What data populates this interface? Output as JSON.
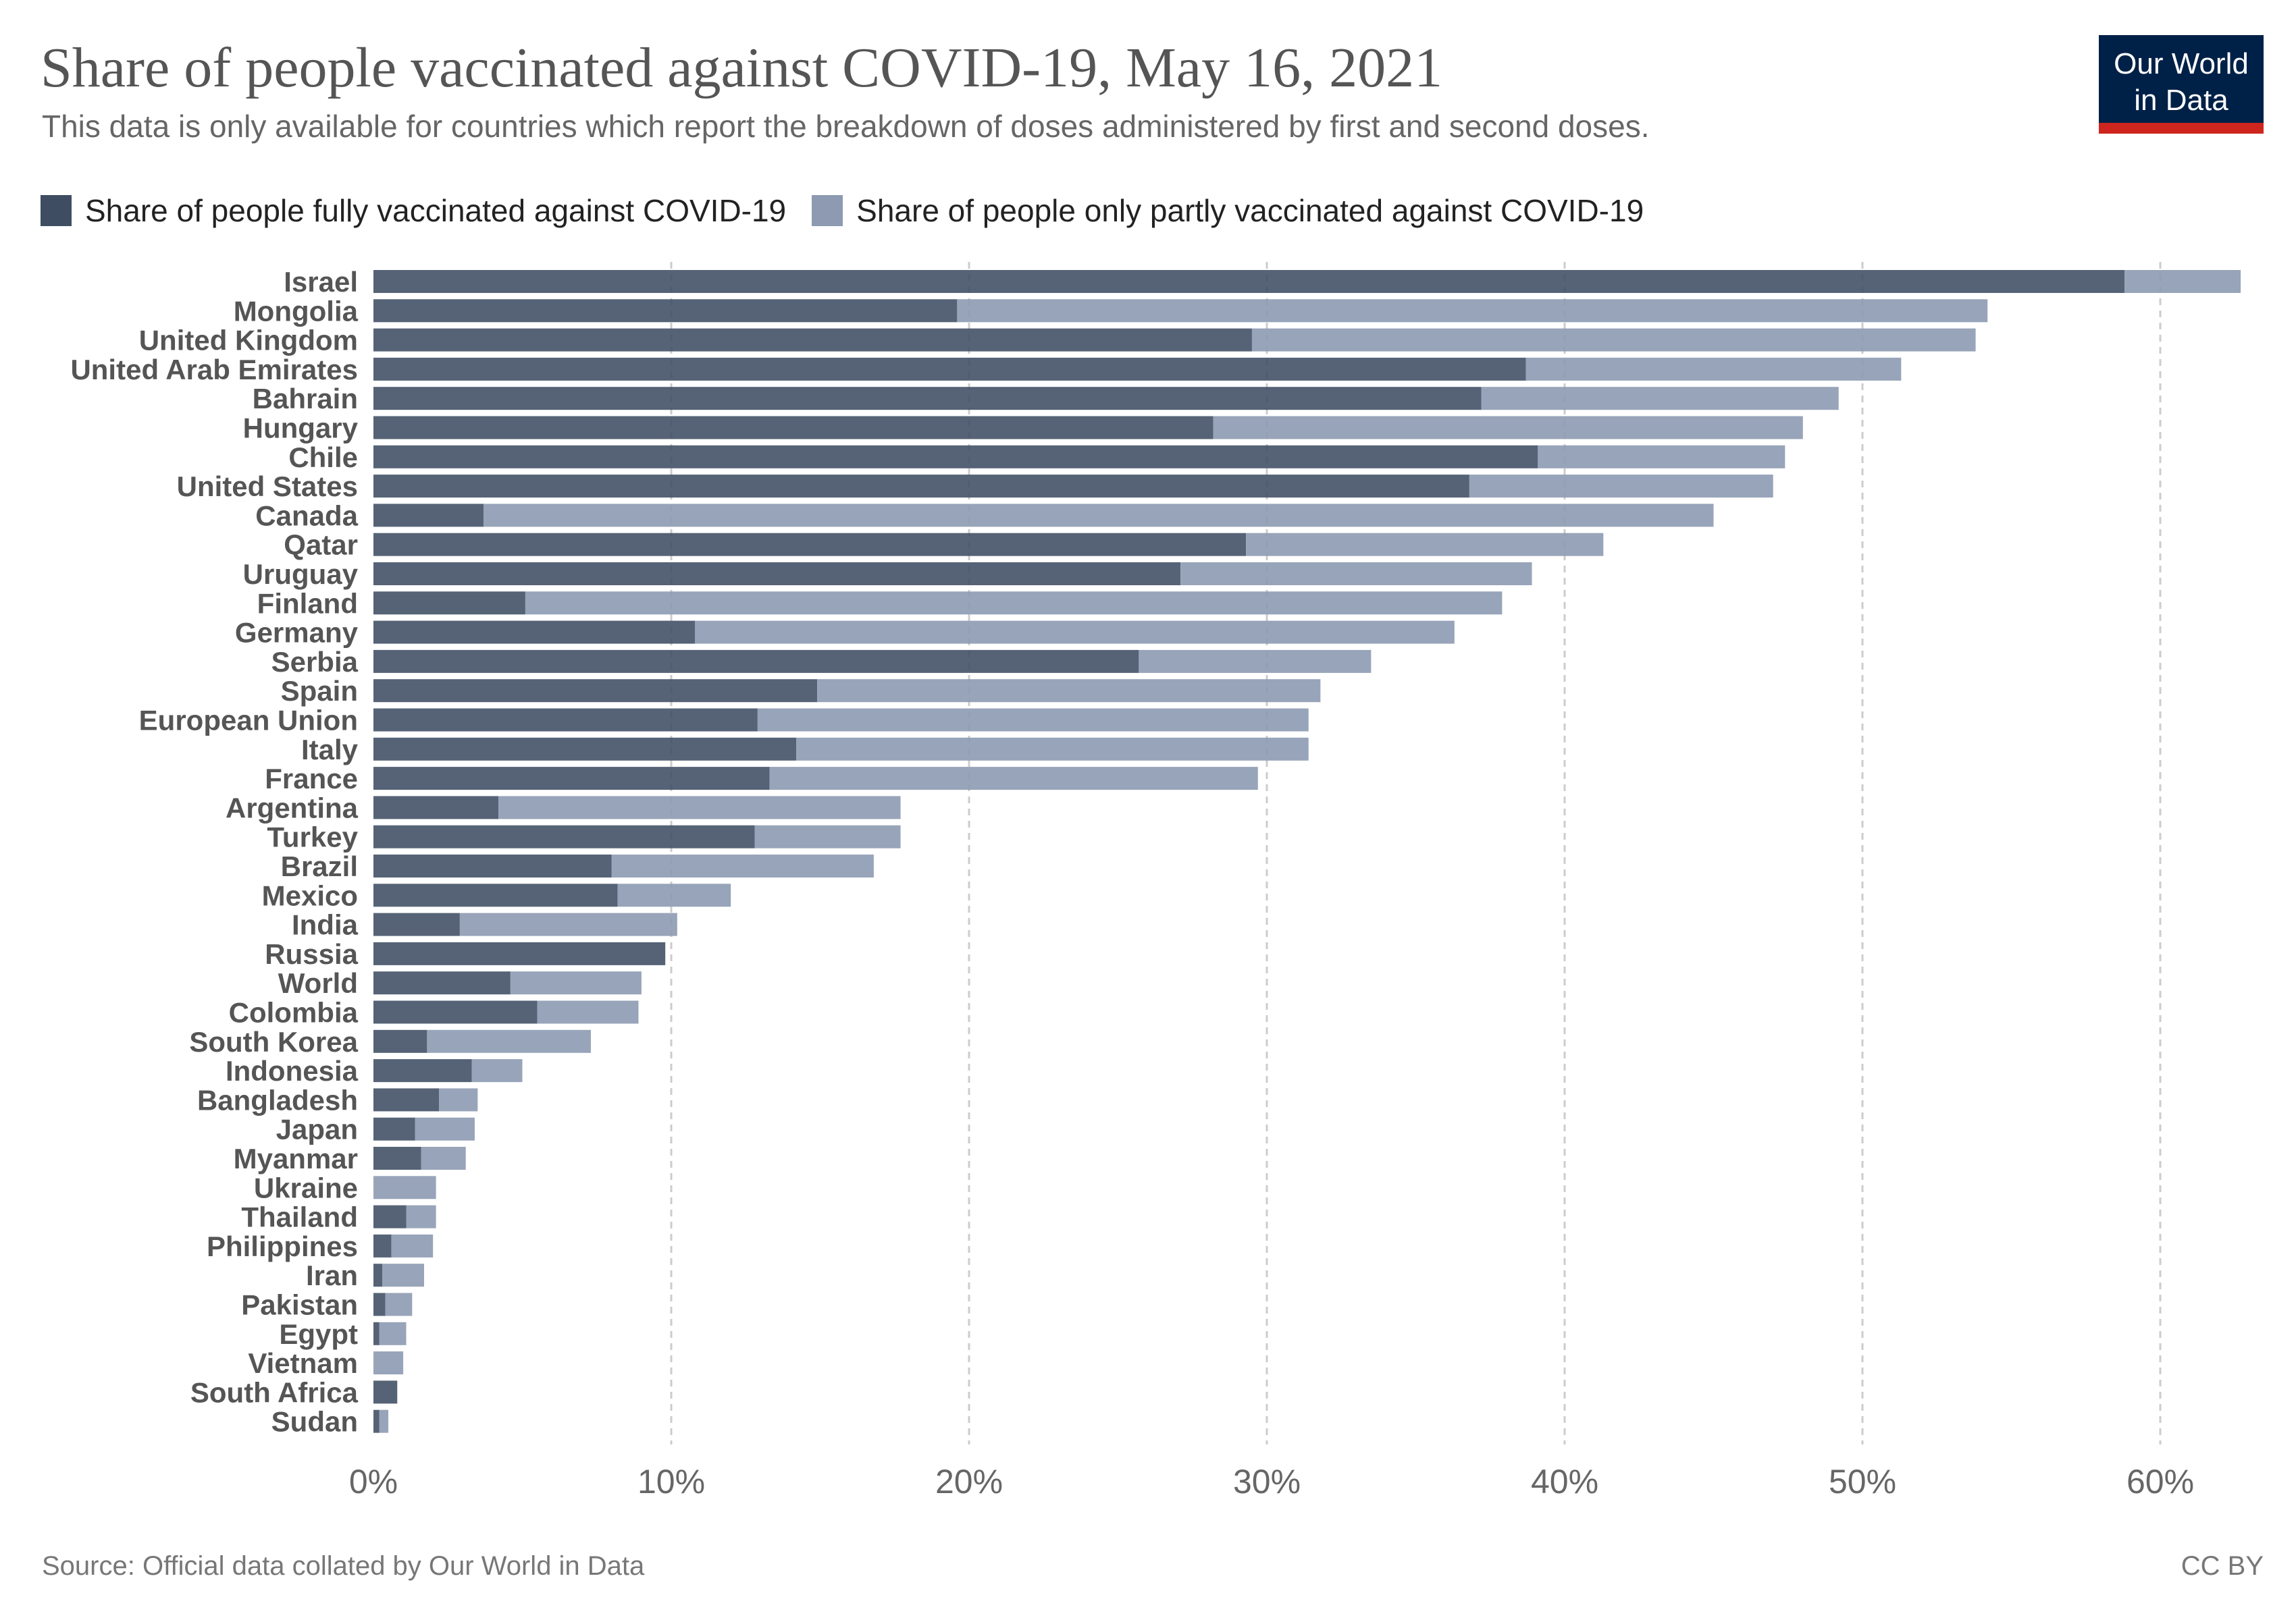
{
  "header": {
    "title": "Share of people vaccinated against COVID-19, May 16, 2021",
    "subtitle": "This data is only available for countries which report the breakdown of doses administered by first and second doses.",
    "logo_line1": "Our World",
    "logo_line2": "in Data"
  },
  "footer": {
    "source": "Source: Official data collated by Our World in Data",
    "license": "CC BY"
  },
  "colors": {
    "fully": "#3f4d63",
    "partly": "#8d9ab1",
    "grid": "#cccccc",
    "logo_bg": "#002147",
    "logo_bar": "#ce261e"
  },
  "chart_data": {
    "type": "bar",
    "orientation": "horizontal",
    "stacked": true,
    "series": [
      {
        "name": "Share of people fully vaccinated against COVID-19",
        "color": "#3f4d63"
      },
      {
        "name": "Share of people only partly vaccinated against COVID-19",
        "color": "#8d9ab1"
      }
    ],
    "xlim": [
      0,
      63
    ],
    "x_ticks": [
      0,
      10,
      20,
      30,
      40,
      50,
      60
    ],
    "x_tick_labels": [
      "0%",
      "10%",
      "20%",
      "30%",
      "40%",
      "50%",
      "60%"
    ],
    "grid": true,
    "legend_position": "top-left",
    "rows": [
      {
        "label": "Israel",
        "fully": 58.8,
        "partly": 3.9
      },
      {
        "label": "Mongolia",
        "fully": 19.6,
        "partly": 34.6
      },
      {
        "label": "United Kingdom",
        "fully": 29.5,
        "partly": 24.3
      },
      {
        "label": "United Arab Emirates",
        "fully": 38.7,
        "partly": 12.6
      },
      {
        "label": "Bahrain",
        "fully": 37.2,
        "partly": 12.0
      },
      {
        "label": "Hungary",
        "fully": 28.2,
        "partly": 19.8
      },
      {
        "label": "Chile",
        "fully": 39.1,
        "partly": 8.3
      },
      {
        "label": "United States",
        "fully": 36.8,
        "partly": 10.2
      },
      {
        "label": "Canada",
        "fully": 3.7,
        "partly": 41.3
      },
      {
        "label": "Qatar",
        "fully": 29.3,
        "partly": 12.0
      },
      {
        "label": "Uruguay",
        "fully": 27.1,
        "partly": 11.8
      },
      {
        "label": "Finland",
        "fully": 5.1,
        "partly": 32.8
      },
      {
        "label": "Germany",
        "fully": 10.8,
        "partly": 25.5
      },
      {
        "label": "Serbia",
        "fully": 25.7,
        "partly": 7.8
      },
      {
        "label": "Spain",
        "fully": 14.9,
        "partly": 16.9
      },
      {
        "label": "European Union",
        "fully": 12.9,
        "partly": 18.5
      },
      {
        "label": "Italy",
        "fully": 14.2,
        "partly": 17.2
      },
      {
        "label": "France",
        "fully": 13.3,
        "partly": 16.4
      },
      {
        "label": "Argentina",
        "fully": 4.2,
        "partly": 13.5
      },
      {
        "label": "Turkey",
        "fully": 12.8,
        "partly": 4.9
      },
      {
        "label": "Brazil",
        "fully": 8.0,
        "partly": 8.8
      },
      {
        "label": "Mexico",
        "fully": 8.2,
        "partly": 3.8
      },
      {
        "label": "India",
        "fully": 2.9,
        "partly": 7.3
      },
      {
        "label": "Russia",
        "fully": 9.8,
        "partly": 0.0
      },
      {
        "label": "World",
        "fully": 4.6,
        "partly": 4.4
      },
      {
        "label": "Colombia",
        "fully": 5.5,
        "partly": 3.4
      },
      {
        "label": "South Korea",
        "fully": 1.8,
        "partly": 5.5
      },
      {
        "label": "Indonesia",
        "fully": 3.3,
        "partly": 1.7
      },
      {
        "label": "Bangladesh",
        "fully": 2.2,
        "partly": 1.3
      },
      {
        "label": "Japan",
        "fully": 1.4,
        "partly": 2.0
      },
      {
        "label": "Myanmar",
        "fully": 1.6,
        "partly": 1.5
      },
      {
        "label": "Ukraine",
        "fully": 0.0,
        "partly": 2.1
      },
      {
        "label": "Thailand",
        "fully": 1.1,
        "partly": 1.0
      },
      {
        "label": "Philippines",
        "fully": 0.6,
        "partly": 1.4
      },
      {
        "label": "Iran",
        "fully": 0.3,
        "partly": 1.4
      },
      {
        "label": "Pakistan",
        "fully": 0.4,
        "partly": 0.9
      },
      {
        "label": "Egypt",
        "fully": 0.2,
        "partly": 0.9
      },
      {
        "label": "Vietnam",
        "fully": 0.0,
        "partly": 1.0
      },
      {
        "label": "South Africa",
        "fully": 0.8,
        "partly": 0.0
      },
      {
        "label": "Sudan",
        "fully": 0.2,
        "partly": 0.3
      }
    ]
  }
}
